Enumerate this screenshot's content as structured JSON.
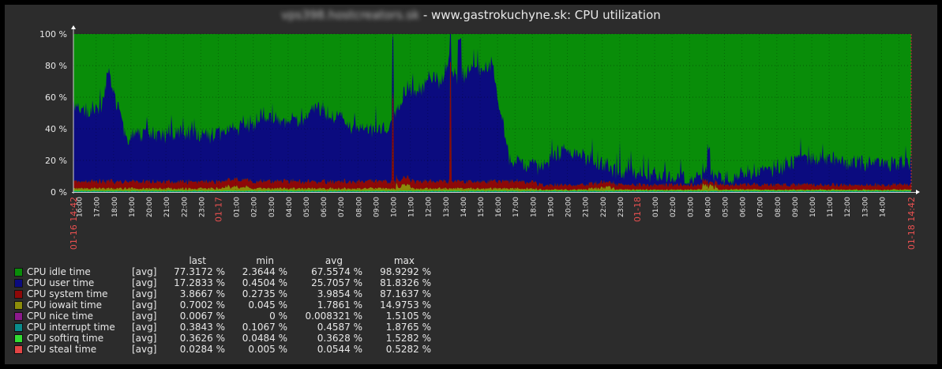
{
  "title": {
    "host": "vps398.hostcreators.sk",
    "rest": " - www.gastrokuchyne.sk: CPU utilization"
  },
  "chart_data": {
    "type": "area",
    "title": "www.gastrokuchyne.sk: CPU utilization",
    "stacked": true,
    "ylim": [
      0,
      100
    ],
    "y_ticks": [
      "0 %",
      "20 %",
      "40 %",
      "60 %",
      "80 %",
      "100 %"
    ],
    "x_range": [
      "01-16 14:42",
      "01-18 14:42"
    ],
    "x_tick_labels": [
      "01-16 14:42",
      "16:00",
      "17:00",
      "18:00",
      "19:00",
      "20:00",
      "21:00",
      "22:00",
      "23:00",
      "01-17",
      "01:00",
      "02:00",
      "03:00",
      "04:00",
      "05:00",
      "06:00",
      "07:00",
      "08:00",
      "09:00",
      "10:00",
      "11:00",
      "12:00",
      "13:00",
      "14:00",
      "15:00",
      "16:00",
      "17:00",
      "18:00",
      "19:00",
      "20:00",
      "21:00",
      "22:00",
      "23:00",
      "01-18",
      "01:00",
      "02:00",
      "03:00",
      "04:00",
      "05:00",
      "06:00",
      "07:00",
      "08:00",
      "09:00",
      "10:00",
      "11:00",
      "12:00",
      "13:00",
      "14:00",
      "01-18 14:42"
    ],
    "x_tick_red": [
      true,
      false,
      false,
      false,
      false,
      false,
      false,
      false,
      false,
      true,
      false,
      false,
      false,
      false,
      false,
      false,
      false,
      false,
      false,
      false,
      false,
      false,
      false,
      false,
      false,
      false,
      false,
      false,
      false,
      false,
      false,
      false,
      false,
      true,
      false,
      false,
      false,
      false,
      false,
      false,
      false,
      false,
      false,
      false,
      false,
      false,
      false,
      false,
      true
    ],
    "user_time_profile": {
      "x": [
        0,
        1.5,
        2,
        3,
        4,
        6,
        8,
        9,
        10,
        11,
        12,
        13,
        14,
        15,
        16,
        17,
        18,
        18.5,
        19,
        20,
        20.5,
        21,
        21.5,
        22,
        22.5,
        23,
        24,
        25,
        26,
        26.5,
        27,
        28,
        29,
        30,
        30.5,
        31,
        32,
        33,
        34,
        35,
        36,
        37,
        38,
        39,
        40,
        41,
        42,
        43,
        44,
        45,
        46,
        47,
        48
      ],
      "y": [
        45,
        45,
        68,
        28,
        30,
        31,
        29,
        32,
        35,
        42,
        36,
        38,
        47,
        42,
        35,
        32,
        32,
        45,
        55,
        60,
        68,
        62,
        75,
        65,
        68,
        72,
        73,
        12,
        10,
        9,
        13,
        22,
        18,
        14,
        12,
        8,
        8,
        6,
        5,
        5,
        5,
        4,
        5,
        8,
        10,
        13,
        16,
        16,
        15,
        14,
        14,
        14,
        14
      ]
    },
    "series": [
      {
        "name": "CPU idle time",
        "color": "#098d09",
        "last": "77.3172 %",
        "min": "2.3644 %",
        "avg": "67.5574 %",
        "max": "98.9292 %"
      },
      {
        "name": "CPU user time",
        "color": "#0b0b7f",
        "last": "17.2833 %",
        "min": "0.4504 %",
        "avg": "25.7057 %",
        "max": "81.8326 %"
      },
      {
        "name": "CPU system time",
        "color": "#8e0808",
        "last": "3.8667 %",
        "min": "0.2735 %",
        "avg": "3.9854 %",
        "max": "87.1637 %"
      },
      {
        "name": "CPU iowait time",
        "color": "#8c8c0a",
        "last": "0.7002 %",
        "min": "0.045 %",
        "avg": "1.7861 %",
        "max": "14.9753 %"
      },
      {
        "name": "CPU nice time",
        "color": "#8c1a8c",
        "last": "0.0067 %",
        "min": "0 %",
        "avg": "0.008321 %",
        "max": "1.5105 %"
      },
      {
        "name": "CPU interrupt time",
        "color": "#0a8c8c",
        "last": "0.3843 %",
        "min": "0.1067 %",
        "avg": "0.4587 %",
        "max": "1.8765 %"
      },
      {
        "name": "CPU softirq time",
        "color": "#33dd33",
        "last": "0.3626 %",
        "min": "0.0484 %",
        "avg": "0.3628 %",
        "max": "1.5282 %"
      },
      {
        "name": "CPU steal time",
        "color": "#e34545",
        "last": "0.0284 %",
        "min": "0.005 %",
        "avg": "0.0544 %",
        "max": "0.5282 %"
      }
    ],
    "legend_agg": "[avg]",
    "columns": [
      "last",
      "min",
      "avg",
      "max"
    ]
  },
  "colors": {
    "background": "#2c2c2c",
    "frame": "#000000",
    "text": "#e8e8e8",
    "red_label": "#e85050",
    "axis": "#bbbbbb"
  }
}
